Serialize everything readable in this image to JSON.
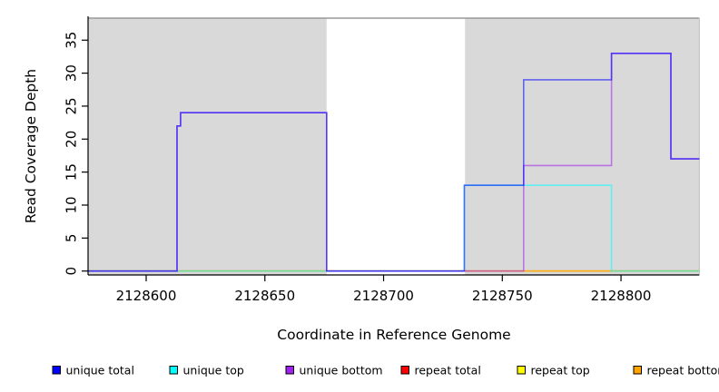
{
  "chart_data": {
    "type": "line",
    "subtype": "step-coverage",
    "title": "",
    "xlabel": "Coordinate in Reference Genome",
    "ylabel": "Read Coverage Depth",
    "xlim": [
      2128575.5,
      2128833
    ],
    "ylim": [
      0,
      38.3
    ],
    "x_ticks": [
      2128600,
      2128650,
      2128700,
      2128750,
      2128800
    ],
    "y_ticks": [
      0,
      5,
      10,
      15,
      20,
      25,
      30,
      35
    ],
    "grid": false,
    "legend_position": "bottom",
    "plot_bg_color": "#ffffff",
    "shaded_region_color": "#d9d9d9",
    "top_border_color": "#999999",
    "axis_color": "#000000",
    "line_opacity": 0.55,
    "shaded_regions": [
      {
        "x0": 2128575.5,
        "x1": 2128676,
        "label": "left-repeat-shading"
      },
      {
        "x0": 2128734.3,
        "x1": 2128833,
        "label": "right-repeat-shading"
      }
    ],
    "series": [
      {
        "name": "repeat total",
        "color": "#ff0000",
        "points": [
          [
            2128575.5,
            0
          ],
          [
            2128833,
            0
          ]
        ]
      },
      {
        "name": "repeat top",
        "color": "#ffff00",
        "points": [
          [
            2128575.5,
            0
          ],
          [
            2128833,
            0
          ]
        ]
      },
      {
        "name": "repeat bottom",
        "color": "#ffa500",
        "points": [
          [
            2128575.5,
            0
          ],
          [
            2128833,
            0
          ]
        ]
      },
      {
        "name": "unique top",
        "color": "#00ffff",
        "points": [
          [
            2128575.5,
            0
          ],
          [
            2128734,
            0
          ],
          [
            2128734,
            13
          ],
          [
            2128796,
            13
          ],
          [
            2128796,
            0
          ],
          [
            2128833,
            0
          ]
        ]
      },
      {
        "name": "unique bottom",
        "color": "#a020f0",
        "points": [
          [
            2128575.5,
            0
          ],
          [
            2128613,
            0
          ],
          [
            2128613,
            22
          ],
          [
            2128614.5,
            22
          ],
          [
            2128614.5,
            24
          ],
          [
            2128676,
            24
          ],
          [
            2128676,
            0
          ],
          [
            2128759,
            0
          ],
          [
            2128759,
            16
          ],
          [
            2128796,
            16
          ],
          [
            2128796,
            33
          ],
          [
            2128821,
            33
          ],
          [
            2128821,
            17
          ],
          [
            2128833,
            17
          ]
        ]
      },
      {
        "name": "unique total",
        "color": "#0000ff",
        "points": [
          [
            2128575.5,
            0
          ],
          [
            2128613,
            0
          ],
          [
            2128613,
            22
          ],
          [
            2128614.5,
            22
          ],
          [
            2128614.5,
            24
          ],
          [
            2128676,
            24
          ],
          [
            2128676,
            0
          ],
          [
            2128734,
            0
          ],
          [
            2128734,
            13
          ],
          [
            2128759,
            13
          ],
          [
            2128759,
            29
          ],
          [
            2128796,
            29
          ],
          [
            2128796,
            33
          ],
          [
            2128821,
            33
          ],
          [
            2128821,
            17
          ],
          [
            2128833,
            17
          ]
        ]
      }
    ],
    "legend": [
      {
        "label": "unique total",
        "color": "#0000ff"
      },
      {
        "label": "unique top",
        "color": "#00ffff"
      },
      {
        "label": "unique bottom",
        "color": "#a020f0"
      },
      {
        "label": "repeat total",
        "color": "#ff0000"
      },
      {
        "label": "repeat top",
        "color": "#ffff00"
      },
      {
        "label": "repeat bottom",
        "color": "#ffa500"
      }
    ]
  }
}
